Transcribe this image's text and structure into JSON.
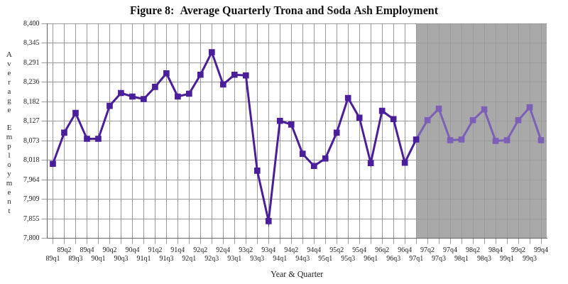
{
  "chart_data": {
    "type": "line",
    "title": "Figure 8:  Average Quarterly Trona and Soda Ash Employment",
    "x_label": "Year & Quarter",
    "y_label": "Average Employment",
    "categories": [
      "89q1",
      "89q2",
      "89q3",
      "89q4",
      "90q1",
      "90q2",
      "90q3",
      "90q4",
      "91q1",
      "91q2",
      "91q3",
      "91q4",
      "92q1",
      "92q2",
      "92q3",
      "92q4",
      "93q1",
      "93q2",
      "93q3",
      "93q4",
      "94q1",
      "94q2",
      "94q3",
      "94q4",
      "95q1",
      "95q2",
      "95q3",
      "95q4",
      "96q1",
      "96q2",
      "96q3",
      "96q4",
      "97q1",
      "97q2",
      "97q3",
      "97q4",
      "98q1",
      "98q2",
      "98q3",
      "98q4",
      "99q1",
      "99q2",
      "99q3",
      "99q4"
    ],
    "values": [
      8008,
      8095,
      8150,
      8078,
      8078,
      8170,
      8206,
      8196,
      8189,
      8223,
      8261,
      8196,
      8204,
      8257,
      8320,
      8230,
      8257,
      8255,
      7989,
      7848,
      8128,
      8118,
      8036,
      8002,
      8023,
      8095,
      8192,
      8137,
      8010,
      8156,
      8133,
      8011,
      8076,
      8130,
      8162,
      8074,
      8076,
      8130,
      8160,
      8072,
      8074,
      8130,
      8166,
      8074
    ],
    "colors": [
      "#4b1e9a",
      "#4b1e9a",
      "#4b1e9a",
      "#4b1e9a",
      "#4b1e9a",
      "#4b1e9a",
      "#4b1e9a",
      "#4b1e9a",
      "#4b1e9a",
      "#4b1e9a",
      "#4b1e9a",
      "#4b1e9a",
      "#4b1e9a",
      "#4b1e9a",
      "#4b1e9a",
      "#4b1e9a",
      "#4b1e9a",
      "#4b1e9a",
      "#4b1e9a",
      "#4b1e9a",
      "#4b1e9a",
      "#4b1e9a",
      "#4b1e9a",
      "#4b1e9a",
      "#4b1e9a",
      "#4b1e9a",
      "#4b1e9a",
      "#4b1e9a",
      "#4b1e9a",
      "#4b1e9a",
      "#4b1e9a",
      "#4b1e9a",
      "#4b1e9a",
      "#7d5fb8",
      "#7d5fb8",
      "#7d5fb8",
      "#7d5fb8",
      "#7d5fb8",
      "#7d5fb8",
      "#7d5fb8",
      "#7d5fb8",
      "#7d5fb8",
      "#7d5fb8",
      "#7d5fb8"
    ],
    "marker": "square",
    "ylim": [
      7800,
      8400
    ],
    "yticks": [
      {
        "value": 7800,
        "label": "7,800"
      },
      {
        "value": 7854.55,
        "label": "7,855"
      },
      {
        "value": 7909.09,
        "label": "7,909"
      },
      {
        "value": 7963.64,
        "label": "7,964"
      },
      {
        "value": 8018.18,
        "label": "8,018"
      },
      {
        "value": 8072.73,
        "label": "8,073"
      },
      {
        "value": 8127.27,
        "label": "8,127"
      },
      {
        "value": 8181.82,
        "label": "8,182"
      },
      {
        "value": 8236.36,
        "label": "8,236"
      },
      {
        "value": 8290.91,
        "label": "8,291"
      },
      {
        "value": 8345.45,
        "label": "8,345"
      },
      {
        "value": 8400,
        "label": "8,400"
      }
    ],
    "grid": true
  }
}
